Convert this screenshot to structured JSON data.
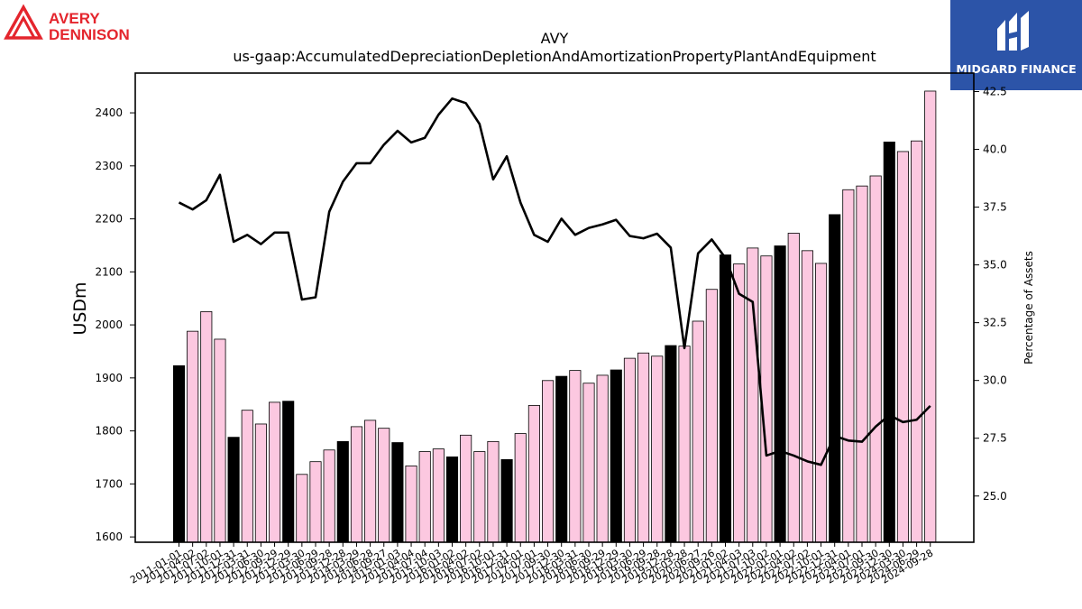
{
  "logos": {
    "left_text_line1": "AVERY",
    "left_text_line2": "DENNISON",
    "right_text": "MIDGARD FINANCE"
  },
  "colors": {
    "bar_pink": "#fcc8e0",
    "bar_black": "#000000",
    "line": "#000000",
    "avery_red": "#e4252d",
    "midgard_blue": "#2c54a8"
  },
  "chart_data": {
    "type": "bar",
    "title": "AVY",
    "subtitle": "us-gaap:AccumulatedDepreciationDepletionAndAmortizationPropertyPlantAndEquipment",
    "ylabel": "USDm",
    "y2label": "Percentage of Assets",
    "ylim": [
      1590,
      2475
    ],
    "y2lim": [
      23.0,
      43.3
    ],
    "yticks": [
      1600,
      1700,
      1800,
      1900,
      2000,
      2100,
      2200,
      2300,
      2400
    ],
    "y2ticks": [
      "25.0",
      "27.5",
      "30.0",
      "32.5",
      "35.0",
      "37.5",
      "40.0",
      "42.5"
    ],
    "categories": [
      "2011-01-01",
      "2011-04-02",
      "2011-07-02",
      "2011-10-01",
      "2011-12-31",
      "2012-03-31",
      "2012-06-30",
      "2012-09-29",
      "2012-12-29",
      "2013-03-30",
      "2013-06-29",
      "2013-09-28",
      "2013-12-28",
      "2014-03-29",
      "2014-06-28",
      "2014-09-27",
      "2015-01-03",
      "2015-04-04",
      "2015-07-04",
      "2015-10-03",
      "2016-01-02",
      "2016-04-02",
      "2016-07-02",
      "2016-10-01",
      "2016-12-31",
      "2017-04-01",
      "2017-07-01",
      "2017-09-30",
      "2017-12-30",
      "2018-03-31",
      "2018-06-30",
      "2018-09-29",
      "2018-12-29",
      "2019-03-30",
      "2019-06-29",
      "2019-09-28",
      "2019-12-28",
      "2020-03-28",
      "2020-06-27",
      "2020-09-26",
      "2021-01-02",
      "2021-04-03",
      "2021-07-03",
      "2021-10-02",
      "2022-01-01",
      "2022-04-02",
      "2022-07-02",
      "2022-10-01",
      "2022-12-31",
      "2023-04-01",
      "2023-07-01",
      "2023-09-30",
      "2023-12-30",
      "2024-03-30",
      "2024-06-29",
      "2024-09-28"
    ],
    "xtick_labels": [
      "2011-01-01",
      "2011-04-02",
      "2011-07-02",
      "2011-10-01",
      "2011-12-31",
      "2012-03-31",
      "2012-06-30",
      "2012-09-29",
      "2012-12-29",
      "2013-03-30",
      "2013-06-29",
      "2013-09-28",
      "2013-12-28",
      "2014-03-29",
      "2014-06-28",
      "2014-09-27",
      "2015-01-03",
      "2015-04-04",
      "2015-07-04",
      "2015-10-03",
      "2016-01-02",
      "2016-04-02",
      "2016-07-02",
      "2016-10-01",
      "2016-12-31",
      "2017-04-01",
      "2017-07-01",
      "2017-09-30",
      "2017-12-30",
      "2018-03-31",
      "2018-06-30",
      "2018-09-29",
      "2018-12-29",
      "2019-03-30",
      "2019-06-29",
      "2019-09-28",
      "2019-12-28",
      "2020-03-28",
      "2020-06-27",
      "2020-09-26",
      "2021-01-02",
      "2021-04-03",
      "2021-07-03",
      "2021-10-02",
      "2022-01-01",
      "2022-04-02",
      "2022-07-02",
      "2022-10-01",
      "2022-12-31",
      "2023-04-01",
      "2023-07-01",
      "2023-09-30",
      "2023-12-30",
      "2024-03-30",
      "2024-06-29",
      "2024-09-28"
    ],
    "values": [
      1923,
      1988,
      2025,
      1973,
      1788,
      1839,
      1813,
      1854,
      1856,
      1718,
      1742,
      1764,
      1780,
      1808,
      1820,
      1805,
      1778,
      1734,
      1761,
      1766,
      1751,
      1792,
      1761,
      1780,
      1746,
      1795,
      1848,
      1895,
      1903,
      1914,
      1890,
      1905,
      1915,
      1937,
      1947,
      1941,
      1961,
      1960,
      2007,
      2067,
      2132,
      2115,
      2145,
      2130,
      2149,
      2173,
      2140,
      2116,
      2208,
      2255,
      2262,
      2281,
      2345,
      2327,
      2347,
      2441
    ],
    "bar_black": [
      true,
      false,
      false,
      false,
      true,
      false,
      false,
      false,
      true,
      false,
      false,
      false,
      true,
      false,
      false,
      false,
      true,
      false,
      false,
      false,
      true,
      false,
      false,
      false,
      true,
      false,
      false,
      false,
      true,
      false,
      false,
      false,
      true,
      false,
      false,
      false,
      true,
      false,
      false,
      false,
      true,
      false,
      false,
      false,
      true,
      false,
      false,
      false,
      true,
      false,
      false,
      false,
      true,
      false,
      false,
      false
    ],
    "series": [
      {
        "type": "line",
        "axis": "right",
        "values": [
          37.7,
          37.4,
          37.8,
          38.9,
          36.0,
          36.3,
          35.9,
          36.4,
          36.4,
          33.5,
          33.6,
          37.3,
          38.6,
          39.4,
          39.4,
          40.2,
          40.8,
          40.3,
          40.5,
          41.5,
          42.2,
          42.0,
          41.1,
          38.7,
          39.7,
          37.7,
          36.3,
          36.0,
          37.0,
          36.3,
          36.6,
          36.75,
          36.95,
          36.25,
          36.15,
          36.35,
          35.75,
          31.4,
          35.5,
          36.1,
          35.3,
          33.75,
          33.4,
          26.75,
          26.95,
          26.75,
          26.5,
          26.35,
          27.6,
          27.4,
          27.35,
          28.0,
          28.5,
          28.2,
          28.3,
          28.9
        ]
      }
    ],
    "grid": false
  }
}
